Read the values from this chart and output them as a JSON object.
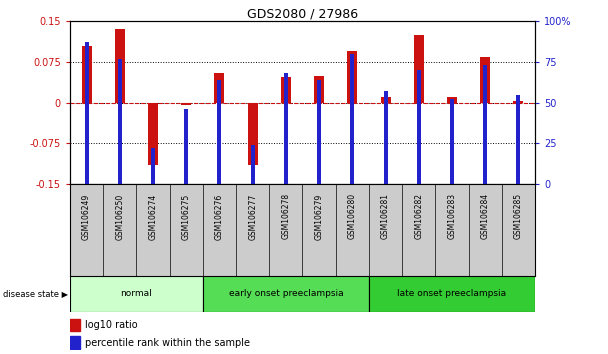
{
  "title": "GDS2080 / 27986",
  "samples": [
    "GSM106249",
    "GSM106250",
    "GSM106274",
    "GSM106275",
    "GSM106276",
    "GSM106277",
    "GSM106278",
    "GSM106279",
    "GSM106280",
    "GSM106281",
    "GSM106282",
    "GSM106283",
    "GSM106284",
    "GSM106285"
  ],
  "log10_ratio": [
    0.105,
    0.135,
    -0.115,
    -0.005,
    0.055,
    -0.115,
    0.048,
    0.05,
    0.095,
    0.01,
    0.125,
    0.01,
    0.085,
    0.003
  ],
  "percentile_rank": [
    87,
    77,
    22,
    46,
    64,
    24,
    68,
    64,
    80,
    57,
    70,
    52,
    73,
    55
  ],
  "groups": [
    {
      "label": "normal",
      "start": 0,
      "end": 4,
      "color": "#ccffcc"
    },
    {
      "label": "early onset preeclampsia",
      "start": 4,
      "end": 9,
      "color": "#55dd55"
    },
    {
      "label": "late onset preeclampsia",
      "start": 9,
      "end": 14,
      "color": "#33cc33"
    }
  ],
  "ylim_left": [
    -0.15,
    0.15
  ],
  "ylim_right": [
    0,
    100
  ],
  "yticks_left": [
    -0.15,
    -0.075,
    0,
    0.075,
    0.15
  ],
  "yticks_right": [
    0,
    25,
    50,
    75,
    100
  ],
  "red_color": "#cc1111",
  "blue_color": "#2222cc",
  "bg_color": "#ffffff",
  "label_bg": "#cccccc",
  "disease_state_label": "disease state"
}
